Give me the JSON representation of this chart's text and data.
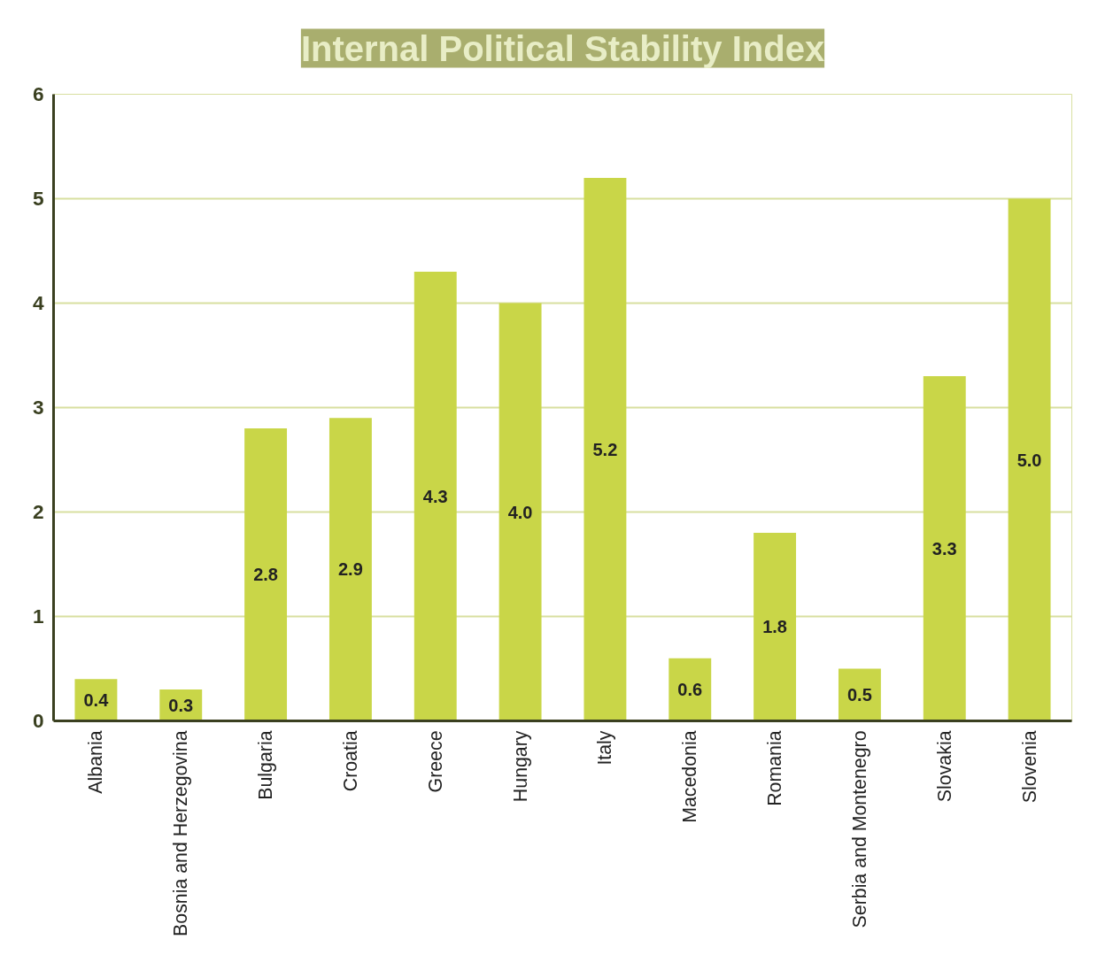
{
  "chart_data": {
    "type": "bar",
    "title": "Internal Political Stability Index",
    "categories": [
      "Albania",
      "Bosnia and Herzegovina",
      "Bulgaria",
      "Croatia",
      "Greece",
      "Hungary",
      "Italy",
      "Macedonia",
      "Romania",
      "Serbia and Montenegro",
      "Slovakia",
      "Slovenia"
    ],
    "values": [
      0.4,
      0.3,
      2.8,
      2.9,
      4.3,
      4.0,
      5.2,
      0.6,
      1.8,
      0.5,
      3.3,
      5.0
    ],
    "value_labels": [
      "0.4",
      "0.3",
      "2.8",
      "2.9",
      "4.3",
      "4.0",
      "5.2",
      "0.6",
      "1.8",
      "0.5",
      "3.3",
      "5.0"
    ],
    "color": "#c9d648",
    "ylim": [
      0,
      6
    ],
    "yticks": [
      0,
      1,
      2,
      3,
      4,
      5,
      6
    ],
    "grid": "y"
  }
}
